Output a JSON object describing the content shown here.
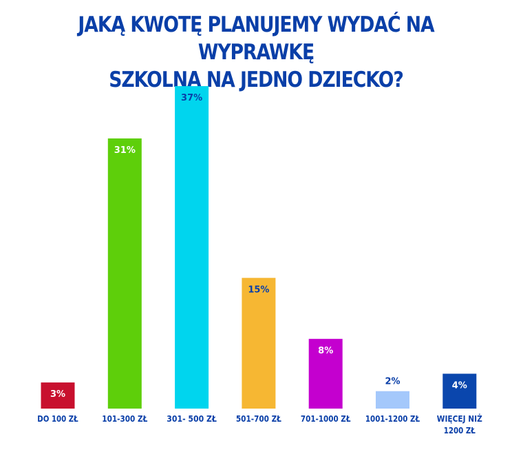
{
  "chart_data": {
    "type": "bar",
    "title_lines": [
      "JAKĄ KWOTĘ PLANUJEMY WYDAĆ NA WYPRAWKĘ",
      "SZKOLNĄ NA JEDNO DZIECKO?"
    ],
    "xlabel": "",
    "ylabel": "",
    "grid": false,
    "legend": "none",
    "ylim": [
      0,
      37
    ],
    "categories": [
      [
        "DO 100 ZŁ"
      ],
      [
        "101-300 ZŁ"
      ],
      [
        "301- 500 ZŁ"
      ],
      [
        "501-700 ZŁ"
      ],
      [
        "701-1000 ZŁ"
      ],
      [
        "1001-1200 ZŁ"
      ],
      [
        "WIĘCEJ NIŻ",
        "1200 ZŁ"
      ]
    ],
    "values": [
      3,
      31,
      37,
      15,
      8,
      2,
      4
    ],
    "value_labels": [
      "3%",
      "31%",
      "37%",
      "15%",
      "8%",
      "2%",
      "4%"
    ],
    "colors": [
      "#c8102e",
      "#5ecf0a",
      "#00d5ee",
      "#f6b733",
      "#c400cf",
      "#a4c8fb",
      "#0a46ad"
    ],
    "label_colors": [
      "#ffffff",
      "#ffffff",
      "#0a3fa8",
      "#0a3fa8",
      "#ffffff",
      "#0a3fa8",
      "#ffffff"
    ],
    "label_outside": [
      false,
      false,
      false,
      false,
      false,
      true,
      false
    ]
  }
}
